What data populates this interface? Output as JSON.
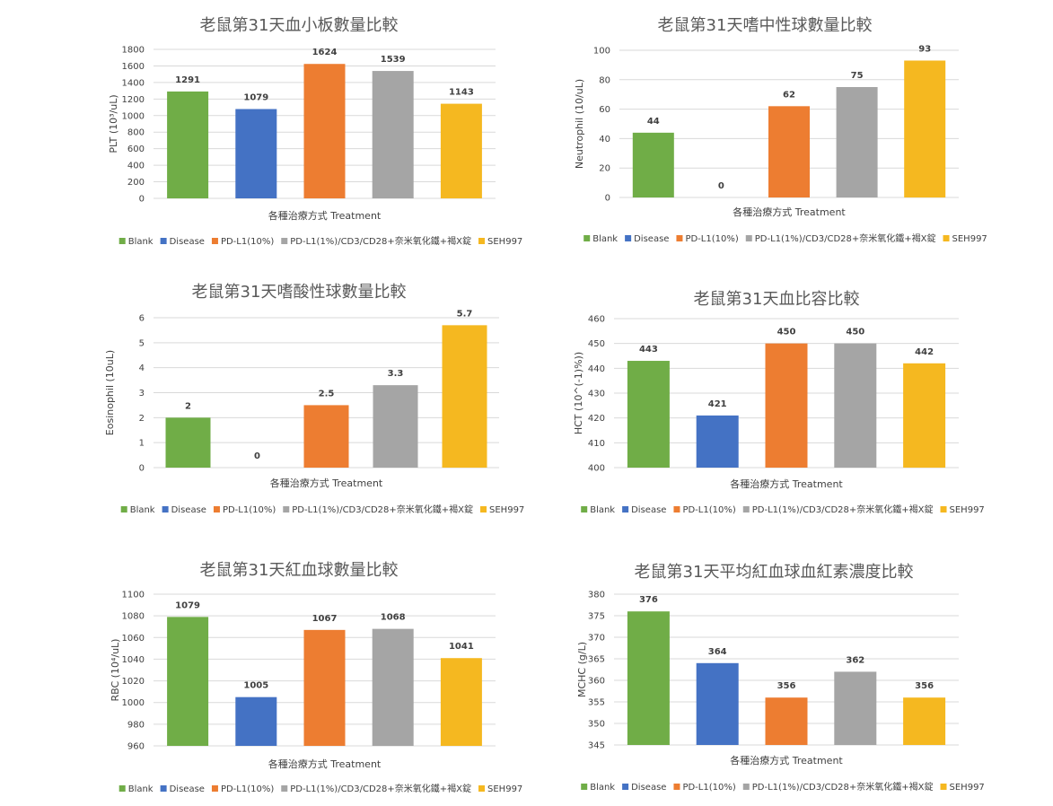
{
  "legend": [
    "Blank",
    "Disease",
    "PD-L1(10%)",
    "PD-L1(1%)/CD3/CD28+奈米氧化鐵+褐X錠",
    "SEH997"
  ],
  "series_colors": [
    "#70ad47",
    "#4472c4",
    "#ed7d31",
    "#a5a5a5",
    "#f5b820"
  ],
  "chart_data": [
    {
      "type": "bar",
      "title": "老鼠第31天血小板數量比較",
      "xlabel": "各種治療方式 Treatment",
      "ylabel": "PLT (10³/uL)",
      "categories": [
        "Blank",
        "Disease",
        "PD-L1(10%)",
        "PD-L1(1%)/CD3/CD28+奈米氧化鐵+褐X錠",
        "SEH997"
      ],
      "values": [
        1291,
        1079,
        1624,
        1539,
        1143
      ],
      "value_labels": [
        "1291",
        "1079",
        "1624",
        "1539",
        "1143"
      ],
      "ylim": [
        0,
        1800
      ],
      "yticks": [
        0,
        200,
        400,
        600,
        800,
        1000,
        1200,
        1400,
        1600,
        1800
      ],
      "grid": true,
      "legend_position": "bottom"
    },
    {
      "type": "bar",
      "title": "老鼠第31天嗜中性球數量比較",
      "xlabel": "各種治療方式 Treatment",
      "ylabel": "Neutrophil  (10/uL)",
      "categories": [
        "Blank",
        "Disease",
        "PD-L1(10%)",
        "PD-L1(1%)/CD3/CD28+奈米氧化鐵+褐X錠",
        "SEH997"
      ],
      "values": [
        44,
        0,
        62,
        75,
        93
      ],
      "value_labels": [
        "44",
        "0",
        "62",
        "75",
        "93"
      ],
      "ylim": [
        0,
        100
      ],
      "yticks": [
        0,
        20,
        40,
        60,
        80,
        100
      ],
      "grid": true,
      "legend_position": "bottom"
    },
    {
      "type": "bar",
      "title": "老鼠第31天嗜酸性球數量比較",
      "xlabel": "各種治療方式 Treatment",
      "ylabel": "Eosinophil (10uL)",
      "categories": [
        "Blank",
        "Disease",
        "PD-L1(10%)",
        "PD-L1(1%)/CD3/CD28+奈米氧化鐵+褐X錠",
        "SEH997"
      ],
      "values": [
        2,
        0,
        2.5,
        3.3,
        5.7
      ],
      "value_labels": [
        "2",
        "0",
        "2.5",
        "3.3",
        "5.7"
      ],
      "ylim": [
        0,
        6
      ],
      "yticks": [
        0,
        1,
        2,
        3,
        4,
        5,
        6
      ],
      "grid": true,
      "legend_position": "bottom"
    },
    {
      "type": "bar",
      "title": "老鼠第31天血比容比較",
      "xlabel": "各種治療方式 Treatment",
      "ylabel": "HCT (10^(-1)%))",
      "categories": [
        "Blank",
        "Disease",
        "PD-L1(10%)",
        "PD-L1(1%)/CD3/CD28+奈米氧化鐵+褐X錠",
        "SEH997"
      ],
      "values": [
        443,
        421,
        450,
        450,
        442
      ],
      "value_labels": [
        "443",
        "421",
        "450",
        "450",
        "442"
      ],
      "ylim": [
        400,
        460
      ],
      "yticks": [
        400,
        410,
        420,
        430,
        440,
        450,
        460
      ],
      "grid": true,
      "legend_position": "bottom"
    },
    {
      "type": "bar",
      "title": "老鼠第31天紅血球數量比較",
      "xlabel": "各種治療方式 Treatment",
      "ylabel": "RBC (10⁴/uL)",
      "categories": [
        "Blank",
        "Disease",
        "PD-L1(10%)",
        "PD-L1(1%)/CD3/CD28+奈米氧化鐵+褐X錠",
        "SEH997"
      ],
      "values": [
        1079,
        1005,
        1067,
        1068,
        1041
      ],
      "value_labels": [
        "1079",
        "1005",
        "1067",
        "1068",
        "1041"
      ],
      "ylim": [
        960,
        1100
      ],
      "yticks": [
        960,
        980,
        1000,
        1020,
        1040,
        1060,
        1080,
        1100
      ],
      "grid": true,
      "legend_position": "bottom"
    },
    {
      "type": "bar",
      "title": "老鼠第31天平均紅血球血紅素濃度比較",
      "xlabel": "各種治療方式 Treatment",
      "ylabel": "MCHC (g/L)",
      "categories": [
        "Blank",
        "Disease",
        "PD-L1(10%)",
        "PD-L1(1%)/CD3/CD28+奈米氧化鐵+褐X錠",
        "SEH997"
      ],
      "values": [
        376,
        364,
        356,
        362,
        356
      ],
      "value_labels": [
        "376",
        "364",
        "356",
        "362",
        "356"
      ],
      "ylim": [
        345,
        380
      ],
      "yticks": [
        345,
        350,
        355,
        360,
        365,
        370,
        375,
        380
      ],
      "grid": true,
      "legend_position": "bottom"
    }
  ]
}
